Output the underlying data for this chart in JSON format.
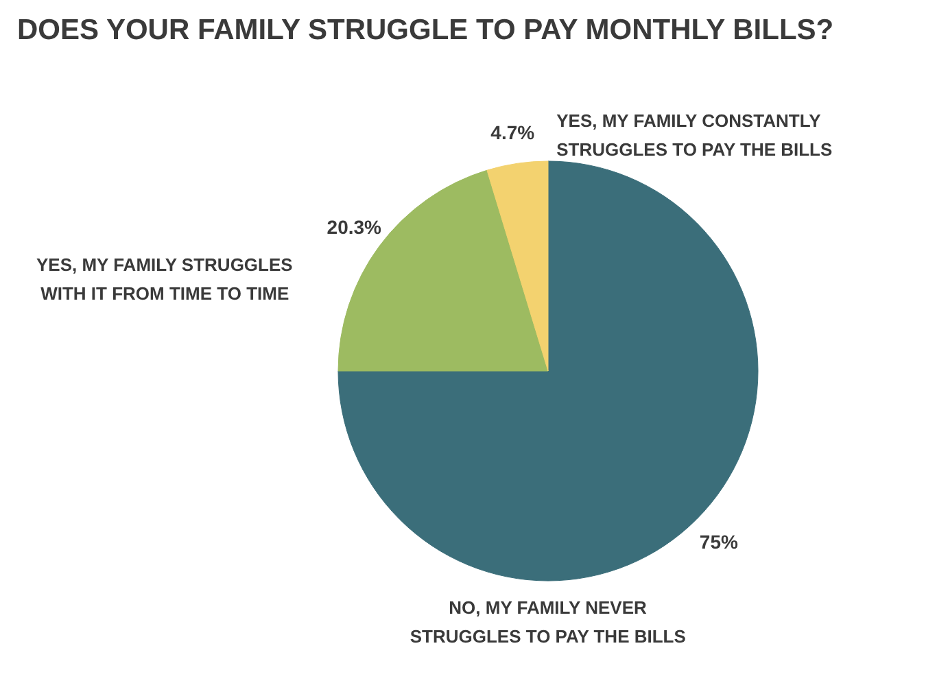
{
  "chart_data": {
    "type": "pie",
    "title": "DOES YOUR FAMILY STRUGGLE TO PAY MONTHLY BILLS?",
    "categories": [
      "NO, MY FAMILY NEVER STRUGGLES TO PAY THE BILLS",
      "YES, MY FAMILY STRUGGLES WITH IT FROM TIME TO TIME",
      "YES, MY FAMILY CONSTANTLY STRUGGLES TO PAY THE BILLS"
    ],
    "values": [
      75,
      20.3,
      4.7
    ],
    "value_labels": [
      "75%",
      "20.3%",
      "4.7%"
    ],
    "colors": [
      "#3b6e7a",
      "#9dbb61",
      "#f3d26f"
    ]
  }
}
